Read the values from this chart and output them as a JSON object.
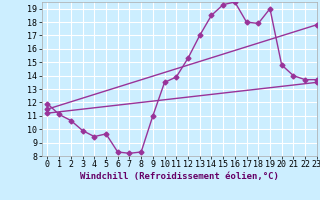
{
  "line1_x": [
    0,
    1,
    2,
    3,
    4,
    5,
    6,
    7,
    8,
    9,
    10,
    11,
    12,
    13,
    14,
    15,
    16,
    17,
    18,
    19,
    20,
    21,
    22,
    23
  ],
  "line1_y": [
    11.9,
    11.1,
    10.65,
    9.9,
    9.45,
    9.65,
    8.3,
    8.2,
    8.3,
    11.0,
    13.5,
    13.9,
    15.3,
    17.0,
    18.5,
    19.3,
    19.5,
    18.0,
    17.9,
    19.0,
    14.8,
    14.0,
    13.7,
    13.7
  ],
  "line2_x": [
    0,
    23
  ],
  "line2_y": [
    11.5,
    17.8
  ],
  "line3_x": [
    0,
    23
  ],
  "line3_y": [
    11.2,
    13.5
  ],
  "line_color": "#993399",
  "bg_color": "#cceeff",
  "grid_color": "#ffffff",
  "xlabel": "Windchill (Refroidissement éolien,°C)",
  "xlim": [
    -0.5,
    23
  ],
  "ylim": [
    8,
    19.5
  ],
  "xticks": [
    0,
    1,
    2,
    3,
    4,
    5,
    6,
    7,
    8,
    9,
    10,
    11,
    12,
    13,
    14,
    15,
    16,
    17,
    18,
    19,
    20,
    21,
    22,
    23
  ],
  "yticks": [
    8,
    9,
    10,
    11,
    12,
    13,
    14,
    15,
    16,
    17,
    18,
    19
  ],
  "marker": "D",
  "marker_size": 2.5,
  "line_width": 1.0,
  "xlabel_fontsize": 6.5,
  "tick_fontsize": 6.0
}
